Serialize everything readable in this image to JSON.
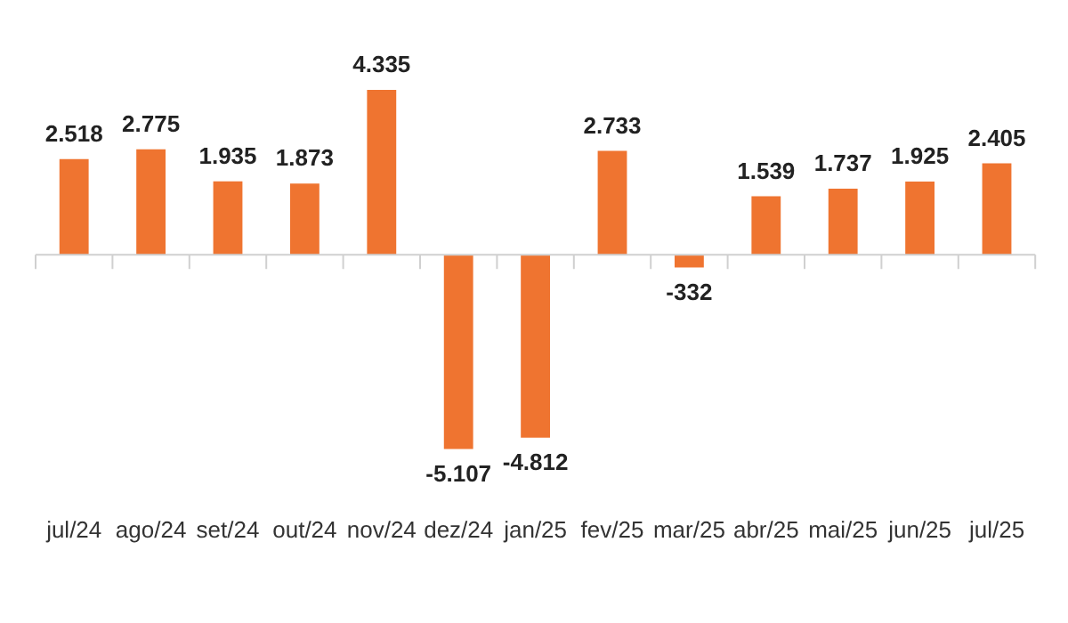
{
  "chart_data": {
    "type": "bar",
    "categories": [
      "jul/24",
      "ago/24",
      "set/24",
      "out/24",
      "nov/24",
      "dez/24",
      "jan/25",
      "fev/25",
      "mar/25",
      "abr/25",
      "mai/25",
      "jun/25",
      "jul/25"
    ],
    "values": [
      2518,
      2775,
      1935,
      1873,
      4335,
      -5107,
      -4812,
      2733,
      -332,
      1539,
      1737,
      1925,
      2405
    ],
    "value_labels": [
      "2.518",
      "2.775",
      "1.935",
      "1.873",
      "4.335",
      "-5.107",
      "-4.812",
      "2.733",
      "-332",
      "1.539",
      "1.737",
      "1.925",
      "2.405"
    ],
    "color": "#ef7430",
    "tick_labels": "x",
    "grid": false,
    "legend": false
  }
}
